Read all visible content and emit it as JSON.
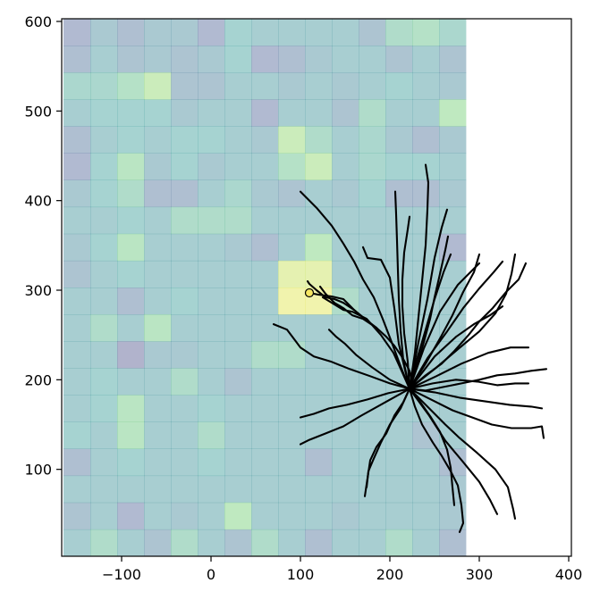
{
  "chart_data": {
    "type": "heatmap",
    "title": "",
    "xlabel": "",
    "ylabel": "",
    "xlim": [
      -167,
      403
    ],
    "ylim": [
      3,
      603
    ],
    "x_ticks": [
      "−100",
      "0",
      "100",
      "200",
      "300",
      "400"
    ],
    "x_tick_values": [
      -100,
      0,
      100,
      200,
      300,
      400
    ],
    "y_ticks": [
      "100",
      "200",
      "300",
      "400",
      "500",
      "600"
    ],
    "y_tick_values": [
      100,
      200,
      300,
      400,
      500,
      600
    ],
    "heatmap": {
      "x_start": -165,
      "x_end": 285,
      "cell_width": 30,
      "y_start": 3,
      "y_end": 603,
      "cell_height": 30,
      "opacity": 0.4,
      "colormap": [
        "#440154",
        "#3b528b",
        "#21918c",
        "#5ec962",
        "#fde725"
      ],
      "rows_top_to_bottom": [
        [
          0.25,
          0.4,
          0.3,
          0.4,
          0.4,
          0.25,
          0.5,
          0.45,
          0.45,
          0.45,
          0.45,
          0.35,
          0.6,
          0.65,
          0.55
        ],
        [
          0.3,
          0.45,
          0.35,
          0.4,
          0.35,
          0.4,
          0.5,
          0.25,
          0.3,
          0.4,
          0.45,
          0.45,
          0.35,
          0.45,
          0.35
        ],
        [
          0.55,
          0.55,
          0.65,
          0.8,
          0.35,
          0.35,
          0.45,
          0.45,
          0.4,
          0.45,
          0.4,
          0.45,
          0.5,
          0.45,
          0.4
        ],
        [
          0.45,
          0.5,
          0.5,
          0.5,
          0.4,
          0.45,
          0.45,
          0.25,
          0.45,
          0.45,
          0.35,
          0.6,
          0.45,
          0.45,
          0.75
        ],
        [
          0.3,
          0.45,
          0.5,
          0.45,
          0.5,
          0.5,
          0.45,
          0.4,
          0.8,
          0.6,
          0.45,
          0.55,
          0.4,
          0.3,
          0.4
        ],
        [
          0.25,
          0.5,
          0.7,
          0.4,
          0.5,
          0.4,
          0.45,
          0.45,
          0.65,
          0.8,
          0.45,
          0.55,
          0.5,
          0.5,
          0.45
        ],
        [
          0.4,
          0.5,
          0.6,
          0.3,
          0.3,
          0.45,
          0.55,
          0.4,
          0.35,
          0.45,
          0.4,
          0.5,
          0.3,
          0.3,
          0.4
        ],
        [
          0.45,
          0.45,
          0.5,
          0.45,
          0.6,
          0.6,
          0.6,
          0.45,
          0.45,
          0.45,
          0.45,
          0.45,
          0.45,
          0.45,
          0.45
        ],
        [
          0.4,
          0.5,
          0.7,
          0.45,
          0.45,
          0.45,
          0.4,
          0.3,
          0.45,
          0.75,
          0.45,
          0.45,
          0.45,
          0.45,
          0.25
        ],
        [
          0.35,
          0.45,
          0.5,
          0.45,
          0.45,
          0.45,
          0.45,
          0.45,
          0.9,
          0.9,
          0.45,
          0.45,
          0.45,
          0.45,
          0.45
        ],
        [
          0.45,
          0.45,
          0.3,
          0.45,
          0.5,
          0.45,
          0.45,
          0.45,
          0.95,
          0.95,
          0.6,
          0.45,
          0.45,
          0.45,
          0.45
        ],
        [
          0.45,
          0.6,
          0.45,
          0.7,
          0.45,
          0.45,
          0.45,
          0.45,
          0.45,
          0.45,
          0.45,
          0.45,
          0.45,
          0.45,
          0.45
        ],
        [
          0.45,
          0.45,
          0.2,
          0.4,
          0.4,
          0.45,
          0.45,
          0.6,
          0.6,
          0.45,
          0.45,
          0.45,
          0.45,
          0.45,
          0.45
        ],
        [
          0.45,
          0.5,
          0.45,
          0.45,
          0.6,
          0.45,
          0.35,
          0.45,
          0.45,
          0.45,
          0.45,
          0.45,
          0.45,
          0.45,
          0.45
        ],
        [
          0.45,
          0.5,
          0.7,
          0.45,
          0.45,
          0.5,
          0.45,
          0.45,
          0.45,
          0.45,
          0.45,
          0.45,
          0.45,
          0.45,
          0.45
        ],
        [
          0.5,
          0.45,
          0.7,
          0.45,
          0.45,
          0.6,
          0.45,
          0.45,
          0.45,
          0.45,
          0.45,
          0.45,
          0.45,
          0.35,
          0.45
        ],
        [
          0.3,
          0.45,
          0.5,
          0.45,
          0.45,
          0.5,
          0.45,
          0.45,
          0.45,
          0.3,
          0.45,
          0.45,
          0.45,
          0.45,
          0.3
        ],
        [
          0.45,
          0.45,
          0.45,
          0.45,
          0.45,
          0.45,
          0.45,
          0.45,
          0.45,
          0.45,
          0.45,
          0.45,
          0.45,
          0.45,
          0.4
        ],
        [
          0.35,
          0.45,
          0.25,
          0.45,
          0.4,
          0.45,
          0.75,
          0.45,
          0.45,
          0.45,
          0.4,
          0.45,
          0.45,
          0.45,
          0.4
        ],
        [
          0.45,
          0.6,
          0.45,
          0.35,
          0.6,
          0.45,
          0.35,
          0.6,
          0.45,
          0.3,
          0.45,
          0.45,
          0.6,
          0.45,
          0.3
        ]
      ]
    },
    "soma": {
      "x": 110,
      "y": 297,
      "color": "#f5e663"
    },
    "neurite_color": "#000000",
    "neurites": [
      [
        [
          110,
          297
        ],
        [
          120,
          295
        ],
        [
          135,
          293
        ],
        [
          148,
          290
        ],
        [
          160,
          278
        ],
        [
          172,
          268
        ],
        [
          185,
          258
        ],
        [
          196,
          248
        ],
        [
          205,
          238
        ],
        [
          214,
          225
        ],
        [
          222,
          210
        ],
        [
          224,
          200
        ],
        [
          222,
          190
        ]
      ],
      [
        [
          222,
          190
        ],
        [
          215,
          175
        ],
        [
          205,
          160
        ],
        [
          196,
          140
        ],
        [
          185,
          125
        ],
        [
          178,
          110
        ],
        [
          175,
          90
        ],
        [
          172,
          70
        ]
      ],
      [
        [
          222,
          190
        ],
        [
          228,
          170
        ],
        [
          236,
          150
        ],
        [
          248,
          130
        ],
        [
          258,
          115
        ],
        [
          268,
          98
        ],
        [
          276,
          82
        ],
        [
          280,
          60
        ],
        [
          282,
          40
        ],
        [
          278,
          30
        ]
      ],
      [
        [
          222,
          190
        ],
        [
          240,
          188
        ],
        [
          260,
          192
        ],
        [
          280,
          196
        ],
        [
          300,
          200
        ],
        [
          320,
          205
        ],
        [
          340,
          207
        ],
        [
          358,
          210
        ],
        [
          375,
          212
        ]
      ],
      [
        [
          222,
          190
        ],
        [
          240,
          205
        ],
        [
          258,
          218
        ],
        [
          272,
          232
        ],
        [
          288,
          250
        ],
        [
          300,
          265
        ],
        [
          315,
          280
        ],
        [
          330,
          298
        ],
        [
          344,
          312
        ],
        [
          352,
          330
        ]
      ],
      [
        [
          222,
          190
        ],
        [
          230,
          215
        ],
        [
          238,
          242
        ],
        [
          245,
          268
        ],
        [
          250,
          292
        ],
        [
          256,
          318
        ],
        [
          262,
          345
        ],
        [
          265,
          360
        ]
      ],
      [
        [
          222,
          190
        ],
        [
          212,
          215
        ],
        [
          202,
          242
        ],
        [
          192,
          268
        ],
        [
          182,
          292
        ],
        [
          170,
          312
        ],
        [
          160,
          332
        ],
        [
          148,
          352
        ],
        [
          135,
          372
        ],
        [
          118,
          392
        ],
        [
          100,
          410
        ]
      ],
      [
        [
          222,
          190
        ],
        [
          215,
          222
        ],
        [
          212,
          255
        ],
        [
          210,
          290
        ],
        [
          209,
          322
        ],
        [
          208,
          355
        ],
        [
          207,
          385
        ],
        [
          206,
          410
        ]
      ],
      [
        [
          222,
          190
        ],
        [
          228,
          230
        ],
        [
          232,
          270
        ],
        [
          236,
          310
        ],
        [
          240,
          350
        ],
        [
          242,
          390
        ],
        [
          243,
          420
        ],
        [
          240,
          440
        ]
      ],
      [
        [
          222,
          190
        ],
        [
          200,
          196
        ],
        [
          178,
          204
        ],
        [
          155,
          212
        ],
        [
          135,
          220
        ],
        [
          115,
          226
        ],
        [
          100,
          236
        ],
        [
          85,
          256
        ],
        [
          70,
          262
        ]
      ],
      [
        [
          222,
          190
        ],
        [
          198,
          185
        ],
        [
          175,
          178
        ],
        [
          152,
          172
        ],
        [
          132,
          168
        ],
        [
          115,
          162
        ],
        [
          100,
          158
        ]
      ],
      [
        [
          222,
          190
        ],
        [
          195,
          175
        ],
        [
          168,
          160
        ],
        [
          148,
          148
        ],
        [
          128,
          140
        ],
        [
          110,
          133
        ],
        [
          100,
          128
        ]
      ],
      [
        [
          222,
          190
        ],
        [
          244,
          168
        ],
        [
          262,
          150
        ],
        [
          278,
          135
        ],
        [
          298,
          118
        ],
        [
          318,
          100
        ],
        [
          332,
          80
        ],
        [
          338,
          55
        ],
        [
          340,
          45
        ]
      ],
      [
        [
          222,
          190
        ],
        [
          246,
          178
        ],
        [
          270,
          166
        ],
        [
          292,
          158
        ],
        [
          314,
          150
        ],
        [
          336,
          146
        ],
        [
          358,
          146
        ],
        [
          370,
          148
        ],
        [
          372,
          135
        ]
      ],
      [
        [
          222,
          190
        ],
        [
          252,
          204
        ],
        [
          280,
          218
        ],
        [
          310,
          230
        ],
        [
          335,
          236
        ],
        [
          355,
          236
        ]
      ],
      [
        [
          222,
          190
        ],
        [
          250,
          212
        ],
        [
          276,
          234
        ],
        [
          300,
          254
        ],
        [
          318,
          274
        ],
        [
          330,
          296
        ],
        [
          336,
          318
        ],
        [
          340,
          340
        ]
      ],
      [
        [
          222,
          190
        ],
        [
          248,
          196
        ],
        [
          274,
          200
        ],
        [
          298,
          198
        ],
        [
          320,
          194
        ],
        [
          340,
          196
        ],
        [
          355,
          196
        ]
      ],
      [
        [
          222,
          190
        ],
        [
          240,
          218
        ],
        [
          256,
          246
        ],
        [
          270,
          272
        ],
        [
          282,
          298
        ],
        [
          294,
          320
        ],
        [
          300,
          340
        ]
      ],
      [
        [
          222,
          190
        ],
        [
          230,
          222
        ],
        [
          240,
          256
        ],
        [
          250,
          290
        ],
        [
          260,
          320
        ],
        [
          268,
          340
        ]
      ],
      [
        [
          222,
          190
        ],
        [
          234,
          175
        ],
        [
          246,
          158
        ],
        [
          256,
          142
        ],
        [
          264,
          122
        ],
        [
          268,
          102
        ],
        [
          270,
          80
        ],
        [
          272,
          60
        ]
      ],
      [
        [
          222,
          190
        ],
        [
          244,
          160
        ],
        [
          262,
          132
        ],
        [
          282,
          108
        ],
        [
          300,
          86
        ],
        [
          312,
          66
        ],
        [
          320,
          50
        ]
      ],
      [
        [
          222,
          190
        ],
        [
          250,
          186
        ],
        [
          278,
          180
        ],
        [
          306,
          176
        ],
        [
          334,
          172
        ],
        [
          358,
          170
        ],
        [
          370,
          168
        ]
      ],
      [
        [
          222,
          190
        ],
        [
          220,
          220
        ],
        [
          216,
          252
        ],
        [
          214,
          282
        ],
        [
          214,
          312
        ],
        [
          216,
          342
        ],
        [
          220,
          368
        ],
        [
          222,
          382
        ]
      ],
      [
        [
          222,
          190
        ],
        [
          232,
          242
        ],
        [
          242,
          290
        ],
        [
          250,
          336
        ],
        [
          258,
          370
        ],
        [
          264,
          390
        ]
      ],
      [
        [
          222,
          190
        ],
        [
          238,
          235
        ],
        [
          256,
          276
        ],
        [
          276,
          306
        ],
        [
          294,
          324
        ],
        [
          300,
          330
        ]
      ],
      [
        [
          222,
          190
        ],
        [
          214,
          208
        ],
        [
          204,
          230
        ],
        [
          190,
          250
        ],
        [
          174,
          268
        ],
        [
          158,
          276
        ],
        [
          148,
          278
        ],
        [
          135,
          286
        ],
        [
          125,
          292
        ]
      ],
      [
        [
          222,
          190
        ],
        [
          200,
          200
        ],
        [
          180,
          214
        ],
        [
          162,
          228
        ],
        [
          150,
          240
        ],
        [
          140,
          248
        ],
        [
          132,
          256
        ]
      ],
      [
        [
          222,
          190
        ],
        [
          212,
          168
        ],
        [
          200,
          150
        ],
        [
          190,
          130
        ],
        [
          182,
          112
        ],
        [
          176,
          98
        ],
        [
          174,
          80
        ]
      ],
      [
        [
          222,
          190
        ],
        [
          230,
          200
        ],
        [
          250,
          226
        ],
        [
          274,
          248
        ],
        [
          294,
          262
        ],
        [
          312,
          272
        ],
        [
          326,
          282
        ]
      ],
      [
        [
          222,
          190
        ],
        [
          242,
          224
        ],
        [
          264,
          254
        ],
        [
          282,
          280
        ],
        [
          300,
          302
        ],
        [
          316,
          320
        ],
        [
          326,
          332
        ]
      ],
      [
        [
          222,
          190
        ],
        [
          210,
          240
        ],
        [
          205,
          280
        ],
        [
          200,
          314
        ],
        [
          190,
          334
        ],
        [
          175,
          336
        ],
        [
          170,
          348
        ]
      ],
      [
        [
          160,
          278
        ],
        [
          148,
          286
        ],
        [
          138,
          290
        ],
        [
          128,
          292
        ],
        [
          118,
          300
        ],
        [
          110,
          307
        ],
        [
          108,
          310
        ]
      ],
      [
        [
          185,
          258
        ],
        [
          170,
          268
        ],
        [
          158,
          272
        ],
        [
          148,
          280
        ],
        [
          138,
          286
        ],
        [
          128,
          296
        ],
        [
          122,
          304
        ]
      ]
    ]
  }
}
